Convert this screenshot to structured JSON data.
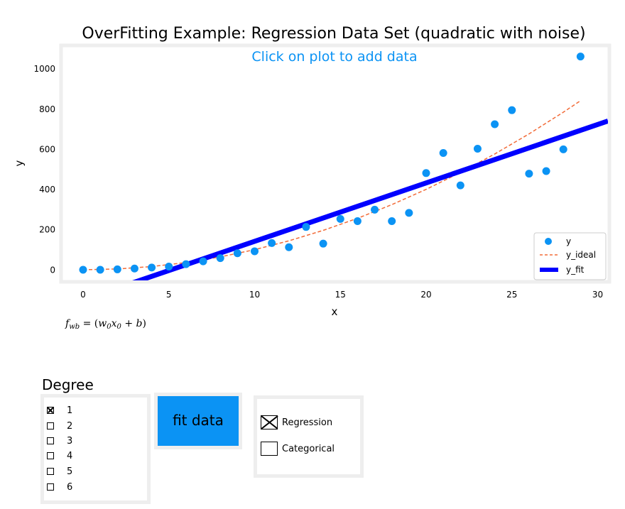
{
  "chart_data": {
    "type": "scatter",
    "title": "OverFitting Example: Regression Data Set (quadratic with noise)",
    "annotation": "Click on plot to add data",
    "xlabel": "x",
    "ylabel": "y",
    "xlim": [
      -1.2,
      30.6
    ],
    "ylim": [
      -52,
      1110
    ],
    "xticks": [
      0,
      5,
      10,
      15,
      20,
      25,
      30
    ],
    "yticks": [
      0,
      200,
      400,
      600,
      800,
      1000
    ],
    "grid": false,
    "legend_position": "lower-right",
    "equation": "f_wb = (w0 x0 + b)",
    "series": [
      {
        "name": "y",
        "kind": "scatter",
        "color": "#0b93f4",
        "x": [
          0,
          1,
          2,
          3,
          4,
          5,
          6,
          7,
          8,
          9,
          10,
          11,
          12,
          13,
          14,
          15,
          16,
          17,
          18,
          19,
          20,
          21,
          22,
          23,
          24,
          25,
          26,
          27,
          28,
          29
        ],
        "y": [
          1,
          1,
          3,
          7,
          12,
          17,
          29,
          43,
          59,
          83,
          93,
          134,
          113,
          214,
          131,
          254,
          243,
          300,
          243,
          284,
          482,
          582,
          421,
          603,
          725,
          795,
          479,
          492,
          600,
          1062
        ]
      },
      {
        "name": "y_ideal",
        "kind": "line",
        "style": "dashed",
        "color": "#f26b38",
        "x": [
          0,
          2,
          4,
          6,
          8,
          10,
          12,
          14,
          16,
          18,
          20,
          22,
          24,
          26,
          28,
          29
        ],
        "y": [
          1,
          5,
          17,
          37,
          65,
          101,
          145,
          197,
          257,
          325,
          401,
          485,
          577,
          677,
          785,
          842
        ]
      },
      {
        "name": "y_fit",
        "kind": "line",
        "style": "solid",
        "color": "#0000ff",
        "x": [
          -1.2,
          30.6
        ],
        "y": [
          -183,
          741
        ]
      }
    ]
  },
  "controls": {
    "degree_title": "Degree",
    "degrees": [
      {
        "label": "1",
        "checked": true
      },
      {
        "label": "2",
        "checked": false
      },
      {
        "label": "3",
        "checked": false
      },
      {
        "label": "4",
        "checked": false
      },
      {
        "label": "5",
        "checked": false
      },
      {
        "label": "6",
        "checked": false
      }
    ],
    "fit_button": "fit data",
    "modes": [
      {
        "label": "Regression",
        "checked": true
      },
      {
        "label": "Categorical",
        "checked": false
      }
    ]
  }
}
